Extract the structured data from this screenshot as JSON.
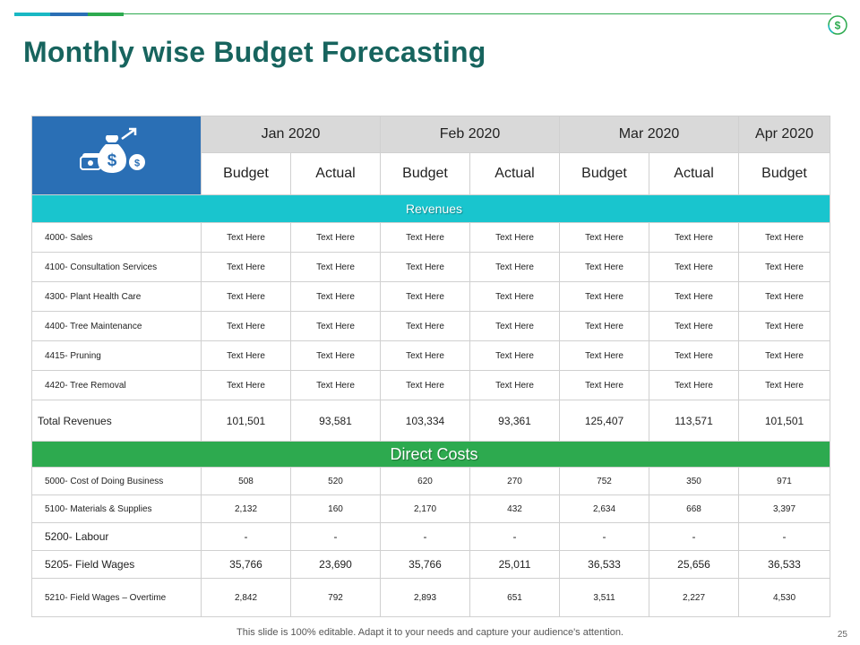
{
  "title": "Monthly wise Budget Forecasting",
  "months": [
    "Jan 2020",
    "Feb 2020",
    "Mar 2020",
    "Apr 2020"
  ],
  "subheaders": [
    "Budget",
    "Actual",
    "Budget",
    "Actual",
    "Budget",
    "Actual",
    "Budget"
  ],
  "revenues": {
    "label": "Revenues",
    "rows": [
      {
        "label": "4000- Sales",
        "values": [
          "Text Here",
          "Text Here",
          "Text Here",
          "Text Here",
          "Text Here",
          "Text Here",
          "Text Here"
        ]
      },
      {
        "label": "4100- Consultation Services",
        "values": [
          "Text Here",
          "Text Here",
          "Text Here",
          "Text Here",
          "Text Here",
          "Text Here",
          "Text Here"
        ]
      },
      {
        "label": "4300- Plant Health Care",
        "values": [
          "Text Here",
          "Text Here",
          "Text Here",
          "Text Here",
          "Text Here",
          "Text Here",
          "Text Here"
        ]
      },
      {
        "label": "4400- Tree Maintenance",
        "values": [
          "Text Here",
          "Text Here",
          "Text Here",
          "Text Here",
          "Text Here",
          "Text Here",
          "Text Here"
        ]
      },
      {
        "label": "4415- Pruning",
        "values": [
          "Text Here",
          "Text Here",
          "Text Here",
          "Text Here",
          "Text Here",
          "Text Here",
          "Text Here"
        ]
      },
      {
        "label": "4420- Tree Removal",
        "values": [
          "Text Here",
          "Text Here",
          "Text Here",
          "Text Here",
          "Text Here",
          "Text Here",
          "Text Here"
        ]
      }
    ],
    "total": {
      "label": "Total Revenues",
      "values": [
        "101,501",
        "93,581",
        "103,334",
        "93,361",
        "125,407",
        "113,571",
        "101,501"
      ]
    }
  },
  "direct_costs": {
    "label": "Direct Costs",
    "rows": [
      {
        "label": "5000- Cost of Doing Business",
        "values": [
          "508",
          "520",
          "620",
          "270",
          "752",
          "350",
          "971"
        ]
      },
      {
        "label": "5100- Materials & Supplies",
        "values": [
          "2,132",
          "160",
          "2,170",
          "432",
          "2,634",
          "668",
          "3,397"
        ]
      },
      {
        "label": "5200- Labour",
        "values": [
          "-",
          "-",
          "-",
          "-",
          "-",
          "-",
          "-"
        ]
      },
      {
        "label": "5205- Field Wages",
        "values": [
          "35,766",
          "23,690",
          "35,766",
          "25,011",
          "36,533",
          "25,656",
          "36,533"
        ]
      },
      {
        "label": "5210- Field Wages – Overtime",
        "values": [
          "2,842",
          "792",
          "2,893",
          "651",
          "3,511",
          "2,227",
          "4,530"
        ]
      }
    ]
  },
  "footer": "This slide is 100% editable. Adapt it to your needs and capture your audience's attention.",
  "page_number": "25",
  "colors": {
    "title": "#17645e",
    "teal": "#19c5ce",
    "blue": "#2a6fb5",
    "green": "#2daa4f",
    "header_gray": "#d9d9d9"
  },
  "icons": {
    "header": "money-bag-icon",
    "corner": "dollar-cycle-icon"
  }
}
